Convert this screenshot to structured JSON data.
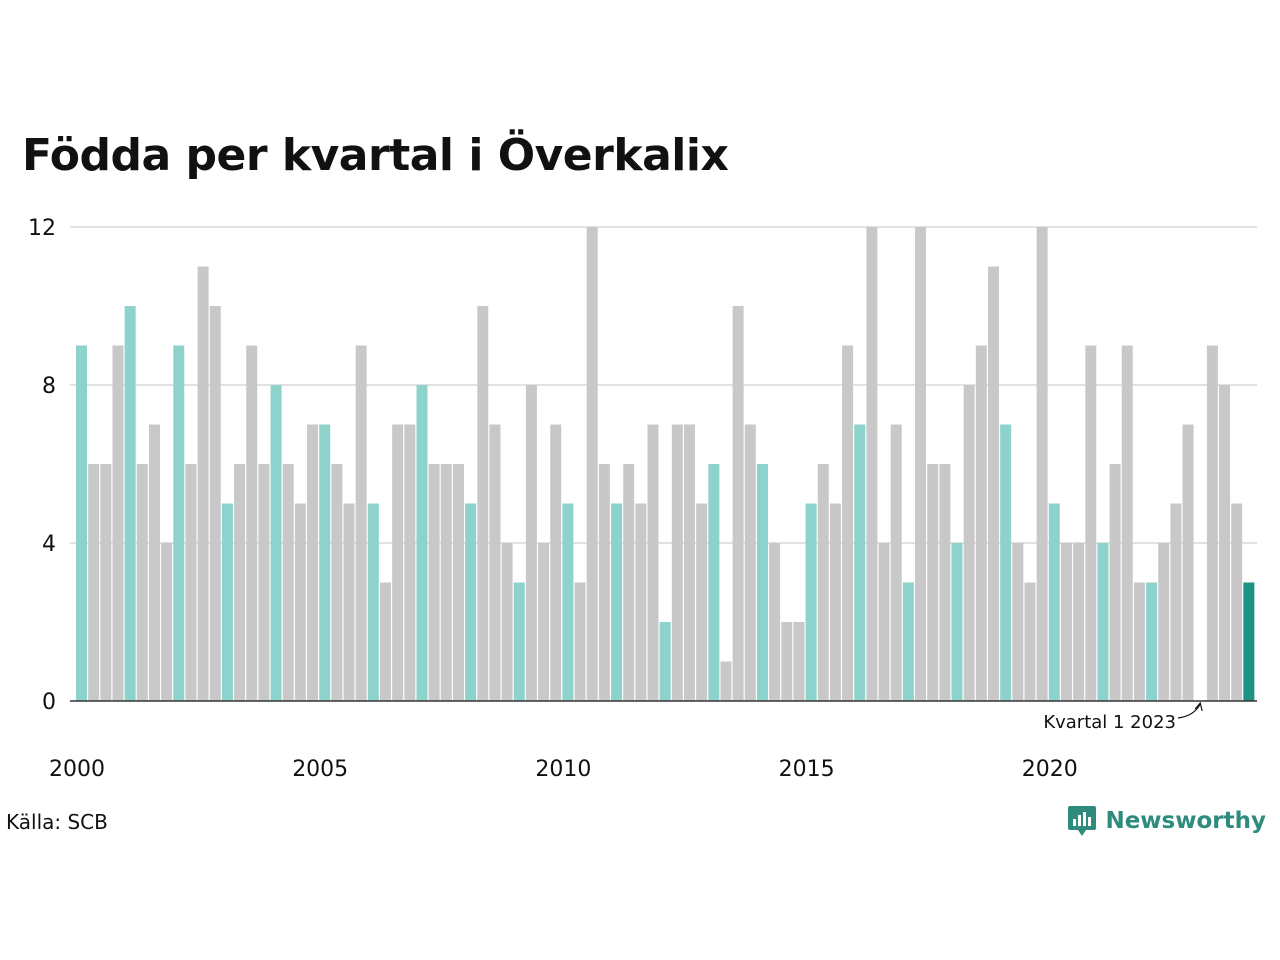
{
  "chart_data": {
    "type": "bar",
    "title": "Födda per kvartal i Överkalix",
    "x_tick_labels": [
      "2000",
      "2005",
      "2010",
      "2015",
      "2020"
    ],
    "y_ticks": [
      0,
      4,
      8,
      12
    ],
    "ylim": [
      0,
      12
    ],
    "grid": true,
    "start": {
      "year": 2000,
      "quarter": 1
    },
    "values": [
      9,
      6,
      6,
      9,
      10,
      6,
      7,
      4,
      9,
      6,
      11,
      10,
      5,
      6,
      9,
      6,
      8,
      6,
      5,
      7,
      7,
      6,
      5,
      9,
      5,
      3,
      7,
      7,
      8,
      6,
      6,
      6,
      5,
      10,
      7,
      4,
      3,
      8,
      4,
      7,
      5,
      3,
      12,
      6,
      5,
      6,
      5,
      7,
      2,
      7,
      7,
      5,
      6,
      1,
      10,
      7,
      6,
      4,
      2,
      2,
      5,
      6,
      5,
      9,
      7,
      12,
      4,
      7,
      3,
      12,
      6,
      6,
      4,
      8,
      9,
      11,
      7,
      4,
      3,
      12,
      5,
      4,
      4,
      9,
      4,
      6,
      9,
      3,
      3,
      4,
      5,
      7,
      null,
      9,
      8,
      5,
      3
    ],
    "highlight_rule": "Kvartal 1 bars shown in accent color; latest quarter emphasized",
    "annotation": "Kvartal 1 2023",
    "colors": {
      "bar": "#c8c8c8",
      "q1": "#8dd3cc",
      "latest": "#1d9384",
      "grid": "#e2e2e2",
      "axis": "#333333"
    }
  },
  "source": "Källa: SCB",
  "brand": "Newsworthy"
}
